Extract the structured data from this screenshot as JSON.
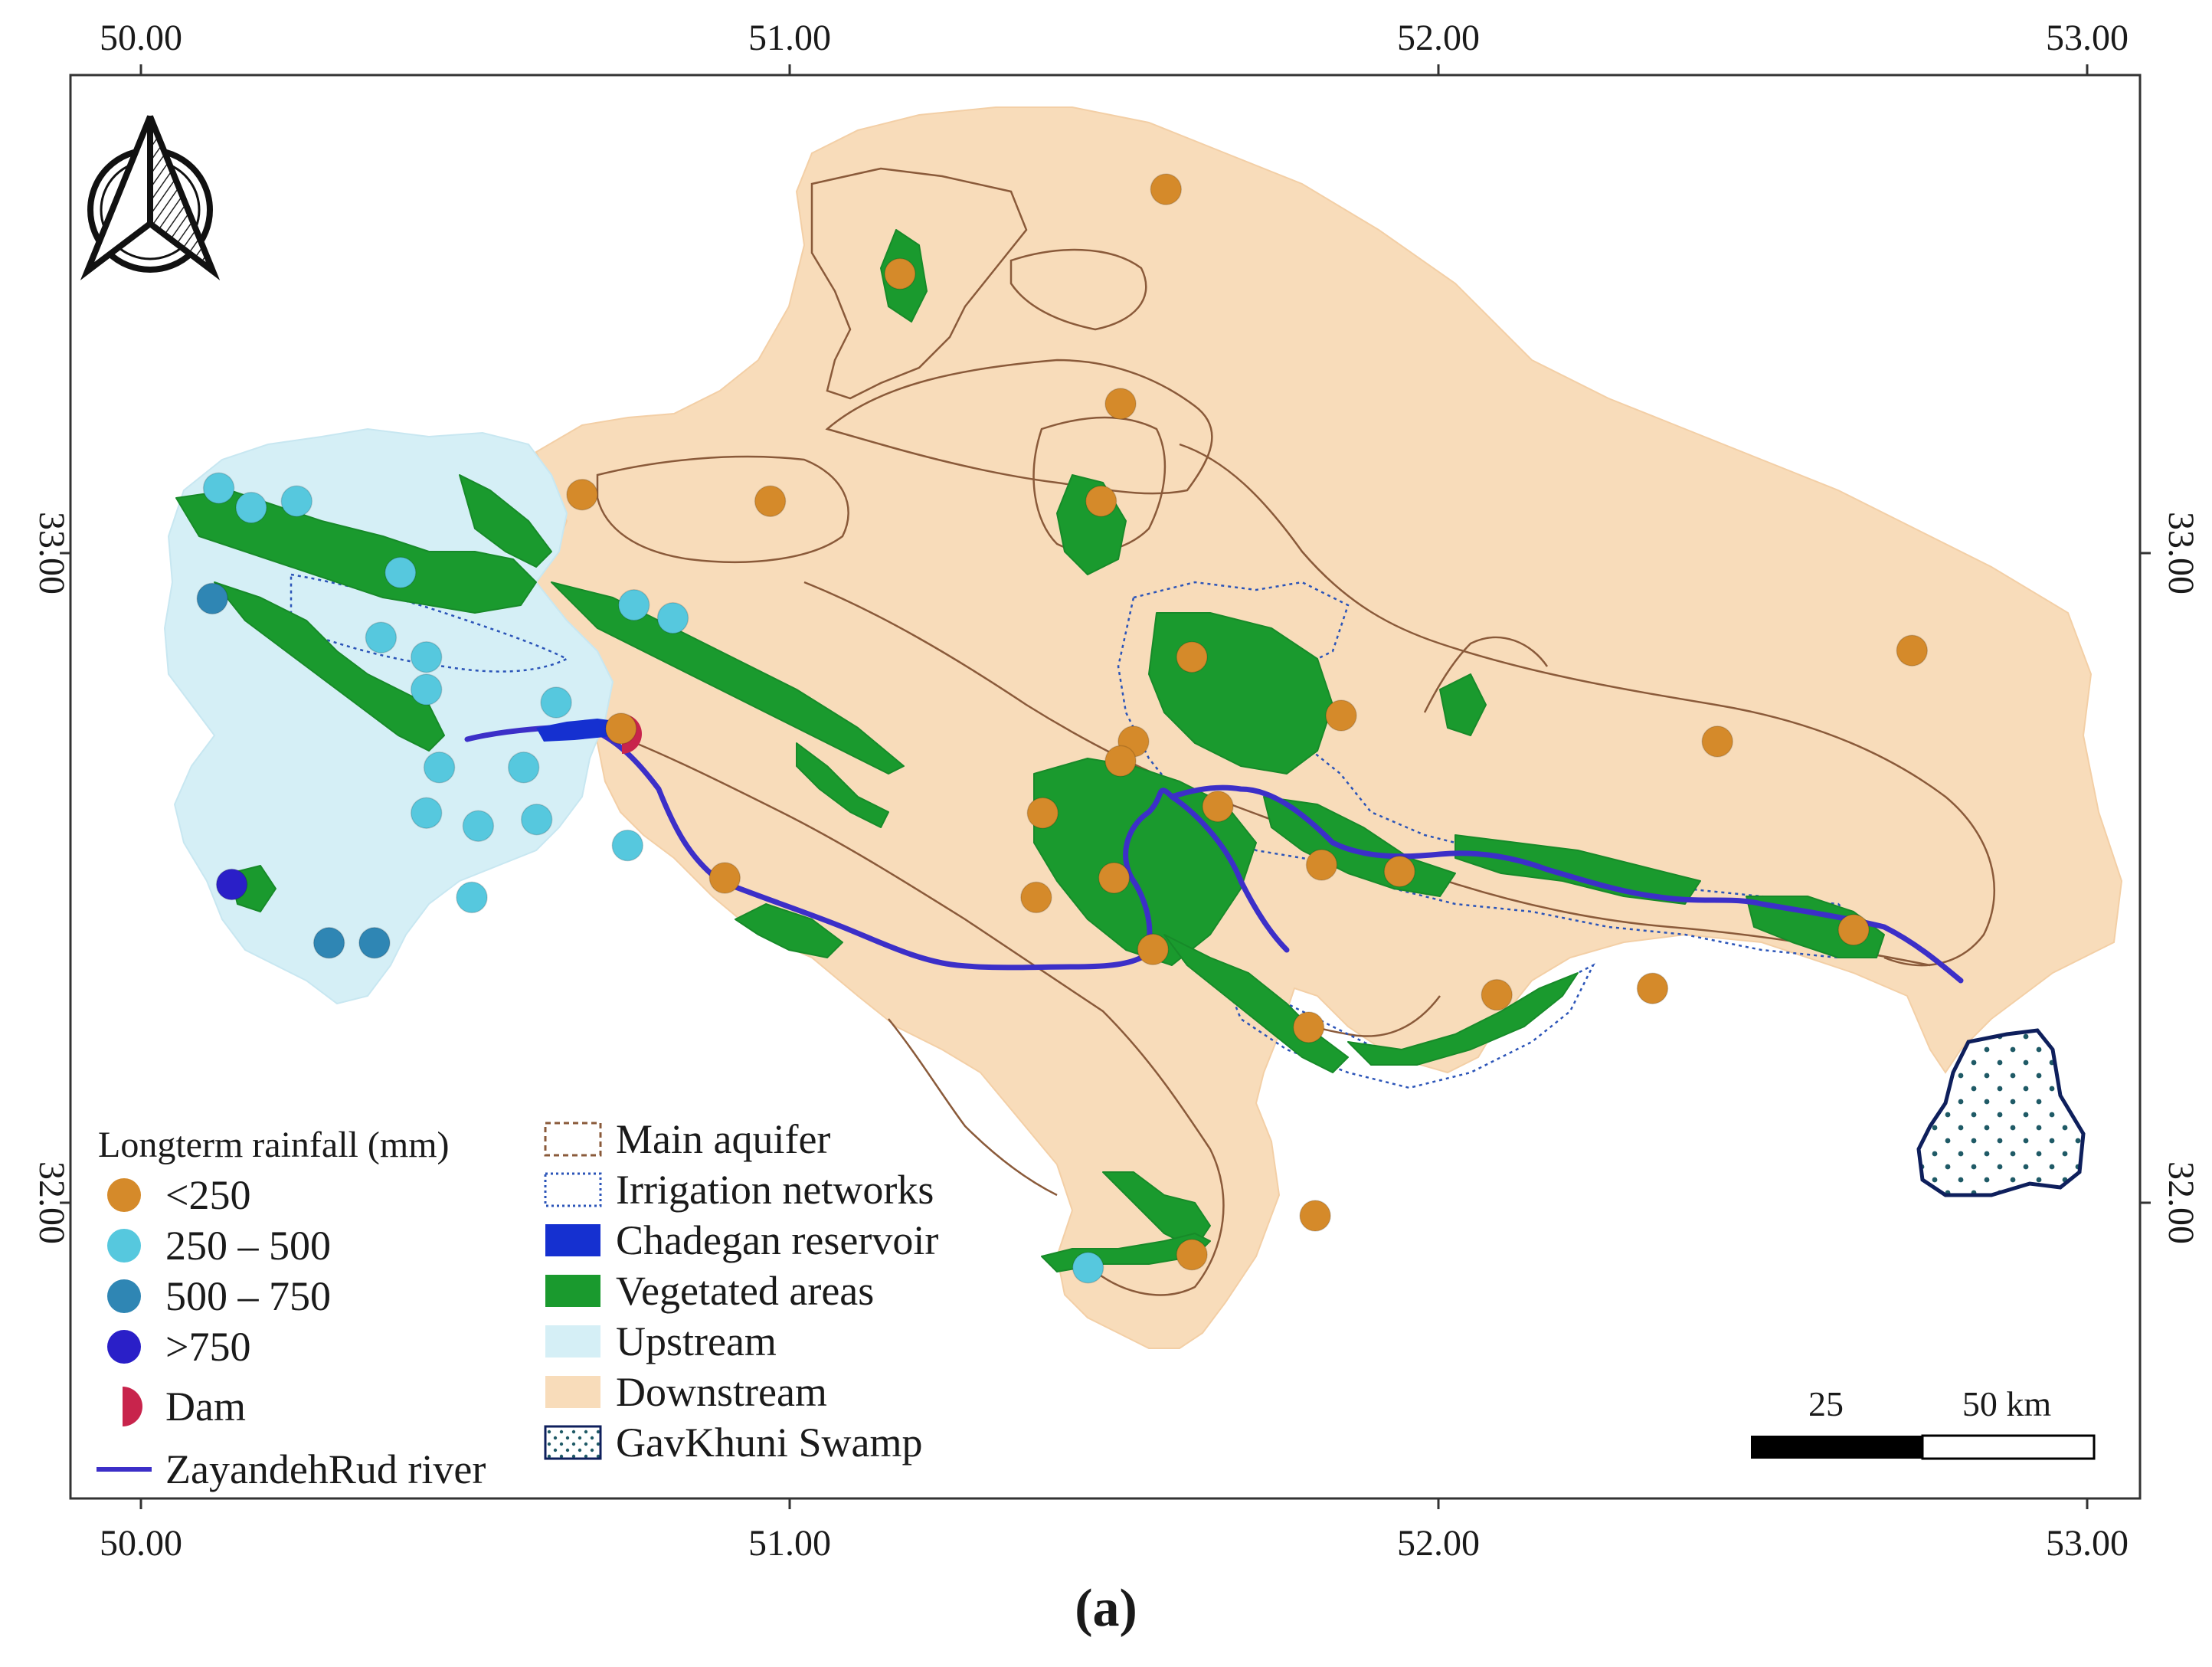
{
  "colors": {
    "downstream": "#f8dcba",
    "upstream": "#d5eff6",
    "vegetation": "#1a9a2e",
    "aquifer": "#8a5a3a",
    "irrigation": "#2b54b8",
    "reservoir": "#1530d0",
    "river": "#3c2fc8",
    "dam": "#c8244c",
    "swamp_border": "#0e1f5c",
    "swamp_dot": "#1f5a66",
    "rain_lt250": "#d58a2a",
    "rain_250_500": "#56c8de",
    "rain_500_750": "#2f86b4",
    "rain_gt750": "#2a1fc8"
  },
  "axes": {
    "lon_ticks": [
      "50.00",
      "51.00",
      "52.00",
      "53.00"
    ],
    "lat_ticks": [
      "33.00",
      "32.00"
    ]
  },
  "north_arrow": {
    "icon": "north-arrow-icon"
  },
  "legend_left": {
    "title": "Longterm rainfall (mm)",
    "items": [
      {
        "label": "<250",
        "symbol": "circle",
        "color": "#d58a2a"
      },
      {
        "label": "250 – 500",
        "symbol": "circle",
        "color": "#56c8de"
      },
      {
        "label": "500 – 750",
        "symbol": "circle",
        "color": "#2f86b4"
      },
      {
        "label": ">750",
        "symbol": "circle",
        "color": "#2a1fc8"
      },
      {
        "label": "Dam",
        "symbol": "half-circle",
        "color": "#c8244c"
      },
      {
        "label": "ZayandehRud river",
        "symbol": "line",
        "color": "#3c2fc8"
      }
    ]
  },
  "legend_right": {
    "items": [
      {
        "label": "Main aquifer",
        "symbol": "dashed-brown-box"
      },
      {
        "label": "Irrigation networks",
        "symbol": "dotted-blue-box"
      },
      {
        "label": "Chadegan reservoir",
        "symbol": "solid-blue-box"
      },
      {
        "label": "Vegetated areas",
        "symbol": "solid-green-box"
      },
      {
        "label": "Upstream",
        "symbol": "solid-lightblue-box"
      },
      {
        "label": "Downstream",
        "symbol": "solid-peach-box"
      },
      {
        "label": "GavKhuni Swamp",
        "symbol": "dotted-box"
      }
    ]
  },
  "scale_bar": {
    "label_mid": "25",
    "label_end": "50 km"
  },
  "caption": "(a)",
  "stations": [
    {
      "lon": 51.58,
      "lat": 33.56,
      "cls": "lt250"
    },
    {
      "lon": 51.17,
      "lat": 33.43,
      "cls": "lt250"
    },
    {
      "lon": 51.51,
      "lat": 33.23,
      "cls": "lt250"
    },
    {
      "lon": 50.68,
      "lat": 33.09,
      "cls": "lt250"
    },
    {
      "lon": 50.97,
      "lat": 33.08,
      "cls": "lt250"
    },
    {
      "lon": 51.48,
      "lat": 33.08,
      "cls": "lt250"
    },
    {
      "lon": 51.62,
      "lat": 32.84,
      "cls": "lt250"
    },
    {
      "lon": 52.73,
      "lat": 32.85,
      "cls": "lt250"
    },
    {
      "lon": 51.85,
      "lat": 32.75,
      "cls": "lt250"
    },
    {
      "lon": 52.43,
      "lat": 32.71,
      "cls": "lt250"
    },
    {
      "lon": 51.53,
      "lat": 32.71,
      "cls": "lt250"
    },
    {
      "lon": 51.51,
      "lat": 32.68,
      "cls": "lt250"
    },
    {
      "lon": 51.66,
      "lat": 32.61,
      "cls": "lt250"
    },
    {
      "lon": 51.39,
      "lat": 32.6,
      "cls": "lt250"
    },
    {
      "lon": 51.82,
      "lat": 32.52,
      "cls": "lt250"
    },
    {
      "lon": 51.94,
      "lat": 32.51,
      "cls": "lt250"
    },
    {
      "lon": 51.5,
      "lat": 32.5,
      "cls": "lt250"
    },
    {
      "lon": 50.9,
      "lat": 32.5,
      "cls": "lt250"
    },
    {
      "lon": 51.38,
      "lat": 32.47,
      "cls": "lt250"
    },
    {
      "lon": 52.64,
      "lat": 32.42,
      "cls": "lt250"
    },
    {
      "lon": 51.56,
      "lat": 32.39,
      "cls": "lt250"
    },
    {
      "lon": 52.33,
      "lat": 32.33,
      "cls": "lt250"
    },
    {
      "lon": 52.09,
      "lat": 32.32,
      "cls": "lt250"
    },
    {
      "lon": 51.8,
      "lat": 32.27,
      "cls": "lt250"
    },
    {
      "lon": 51.81,
      "lat": 31.98,
      "cls": "lt250"
    },
    {
      "lon": 51.62,
      "lat": 31.92,
      "cls": "lt250"
    },
    {
      "lon": 50.74,
      "lat": 32.73,
      "cls": "lt250"
    },
    {
      "lon": 50.12,
      "lat": 33.1,
      "cls": "250_500"
    },
    {
      "lon": 50.17,
      "lat": 33.07,
      "cls": "250_500"
    },
    {
      "lon": 50.24,
      "lat": 33.08,
      "cls": "250_500"
    },
    {
      "lon": 50.4,
      "lat": 32.97,
      "cls": "250_500"
    },
    {
      "lon": 50.76,
      "lat": 32.92,
      "cls": "250_500"
    },
    {
      "lon": 50.82,
      "lat": 32.9,
      "cls": "250_500"
    },
    {
      "lon": 50.37,
      "lat": 32.87,
      "cls": "250_500"
    },
    {
      "lon": 50.44,
      "lat": 32.84,
      "cls": "250_500"
    },
    {
      "lon": 50.44,
      "lat": 32.79,
      "cls": "250_500"
    },
    {
      "lon": 50.64,
      "lat": 32.77,
      "cls": "250_500"
    },
    {
      "lon": 50.46,
      "lat": 32.67,
      "cls": "250_500"
    },
    {
      "lon": 50.59,
      "lat": 32.67,
      "cls": "250_500"
    },
    {
      "lon": 50.44,
      "lat": 32.6,
      "cls": "250_500"
    },
    {
      "lon": 50.52,
      "lat": 32.58,
      "cls": "250_500"
    },
    {
      "lon": 50.61,
      "lat": 32.59,
      "cls": "250_500"
    },
    {
      "lon": 50.75,
      "lat": 32.55,
      "cls": "250_500"
    },
    {
      "lon": 50.51,
      "lat": 32.47,
      "cls": "250_500"
    },
    {
      "lon": 51.46,
      "lat": 31.9,
      "cls": "250_500"
    },
    {
      "lon": 50.11,
      "lat": 32.93,
      "cls": "500_750"
    },
    {
      "lon": 50.29,
      "lat": 32.4,
      "cls": "500_750"
    },
    {
      "lon": 50.36,
      "lat": 32.4,
      "cls": "500_750"
    },
    {
      "lon": 50.14,
      "lat": 32.49,
      "cls": "gt750"
    }
  ]
}
